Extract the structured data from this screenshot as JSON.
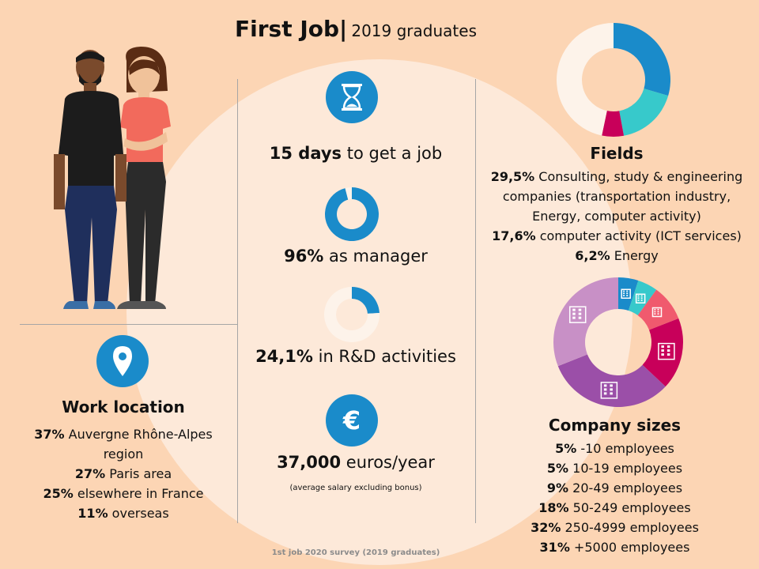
{
  "title": {
    "main": "First Job|",
    "sub": "2019 graduates"
  },
  "icons": {
    "hourglass": "hourglass-icon",
    "euro": "euro-icon",
    "location": "location-pin-icon",
    "building": "building-icon"
  },
  "colors": {
    "background": "#fcd5b4",
    "circle": "#fde9d9",
    "blue": "#1a8bca",
    "teal": "#37c9cb",
    "magenta": "#c8005a",
    "pink": "#f05a6e",
    "purple": "#9b4fa8",
    "lilac": "#c890c6",
    "light": "#fdf3ea"
  },
  "stats": {
    "days": {
      "value": "15 days",
      "text": "to get a job"
    },
    "manager": {
      "value": "96%",
      "text": "as manager"
    },
    "rnd": {
      "value": "24,1%",
      "text": "in R&D activities"
    },
    "salary": {
      "value": "37,000",
      "text": "euros/year",
      "note": "(average salary excluding bonus)"
    }
  },
  "fields": {
    "heading": "Fields",
    "items": [
      {
        "value": "29,5%",
        "text": " Consulting, study & engineering companies (transportation industry, Energy, computer activity)"
      },
      {
        "value": "17,6%",
        "text": " computer activity (ICT services)"
      },
      {
        "value": "6,2%",
        "text": " Energy"
      }
    ]
  },
  "work_location": {
    "heading": "Work location",
    "items": [
      {
        "value": "37%",
        "text": " Auvergne Rhône-Alpes region"
      },
      {
        "value": "27%",
        "text": " Paris area"
      },
      {
        "value": "25%",
        "text": " elsewhere  in France"
      },
      {
        "value": "11%",
        "text": " overseas"
      }
    ]
  },
  "company_sizes": {
    "heading": "Company sizes",
    "items": [
      {
        "value": "5%",
        "text": " -10 employees"
      },
      {
        "value": "5%",
        "text": " 10-19 employees"
      },
      {
        "value": "9%",
        "text": " 20-49 employees"
      },
      {
        "value": "18%",
        "text": " 50-249 employees"
      },
      {
        "value": "32%",
        "text": " 250-4999 employees"
      },
      {
        "value": "31%",
        "text": " +5000 employees"
      }
    ]
  },
  "footer": "1st job 2020 survey (2019 graduates)",
  "chart_data": [
    {
      "type": "pie",
      "name": "manager",
      "values": [
        96,
        4
      ],
      "colors": [
        "#1a8bca",
        "#fdf3ea"
      ]
    },
    {
      "type": "pie",
      "name": "rnd",
      "values": [
        24.1,
        75.9
      ],
      "colors": [
        "#1a8bca",
        "#fdf3ea"
      ]
    },
    {
      "type": "pie",
      "name": "fields",
      "categories": [
        "Consulting, study & engineering companies",
        "computer activity (ICT services)",
        "Energy",
        "other"
      ],
      "values": [
        29.5,
        17.6,
        6.2,
        46.7
      ],
      "colors": [
        "#1a8bca",
        "#37c9cb",
        "#c8005a",
        "#fdf3ea"
      ]
    },
    {
      "type": "pie",
      "name": "company_sizes",
      "categories": [
        "-10 employees",
        "10-19 employees",
        "20-49 employees",
        "50-249 employees",
        "250-4999 employees",
        "+5000 employees"
      ],
      "values": [
        5,
        5,
        9,
        18,
        32,
        31
      ],
      "colors": [
        "#1a8bca",
        "#37c9cb",
        "#f05a6e",
        "#c8005a",
        "#9b4fa8",
        "#c890c6"
      ]
    }
  ]
}
